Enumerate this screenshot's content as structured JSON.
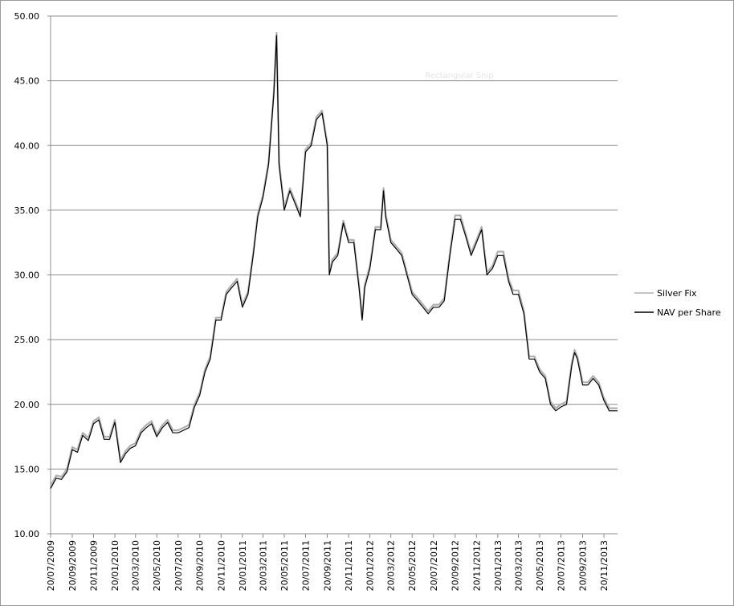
{
  "chart_data": {
    "type": "line",
    "annotation": "Rectangular Snip",
    "x": [
      "20/07/2009",
      "05/08/2009",
      "20/08/2009",
      "05/09/2009",
      "20/09/2009",
      "05/10/2009",
      "20/10/2009",
      "05/11/2009",
      "20/11/2009",
      "05/12/2009",
      "20/12/2009",
      "05/01/2010",
      "20/01/2010",
      "05/02/2010",
      "20/02/2010",
      "05/03/2010",
      "20/03/2010",
      "05/04/2010",
      "20/04/2010",
      "05/05/2010",
      "20/05/2010",
      "05/06/2010",
      "20/06/2010",
      "05/07/2010",
      "20/07/2010",
      "05/08/2010",
      "20/08/2010",
      "05/09/2010",
      "20/09/2010",
      "05/10/2010",
      "20/10/2010",
      "05/11/2010",
      "20/11/2010",
      "05/12/2010",
      "20/12/2010",
      "05/01/2011",
      "20/01/2011",
      "05/02/2011",
      "20/02/2011",
      "05/03/2011",
      "20/03/2011",
      "05/04/2011",
      "20/04/2011",
      "28/04/2011",
      "05/05/2011",
      "20/05/2011",
      "05/06/2011",
      "20/06/2011",
      "05/07/2011",
      "20/07/2011",
      "05/08/2011",
      "20/08/2011",
      "05/09/2011",
      "20/09/2011",
      "26/09/2011",
      "05/10/2011",
      "20/10/2011",
      "05/11/2011",
      "20/11/2011",
      "05/12/2011",
      "20/12/2011",
      "29/12/2011",
      "05/01/2012",
      "20/01/2012",
      "05/02/2012",
      "20/02/2012",
      "28/02/2012",
      "05/03/2012",
      "20/03/2012",
      "05/04/2012",
      "20/04/2012",
      "05/05/2012",
      "20/05/2012",
      "05/06/2012",
      "20/06/2012",
      "05/07/2012",
      "20/07/2012",
      "05/08/2012",
      "20/08/2012",
      "05/09/2012",
      "20/09/2012",
      "05/10/2012",
      "20/10/2012",
      "05/11/2012",
      "20/11/2012",
      "05/12/2012",
      "20/12/2012",
      "05/01/2013",
      "20/01/2013",
      "05/02/2013",
      "20/02/2013",
      "05/03/2013",
      "20/03/2013",
      "05/04/2013",
      "20/04/2013",
      "05/05/2013",
      "20/05/2013",
      "05/06/2013",
      "20/06/2013",
      "05/07/2013",
      "20/07/2013",
      "05/08/2013",
      "20/08/2013",
      "28/08/2013",
      "05/09/2013",
      "20/09/2013",
      "05/10/2013",
      "20/10/2013",
      "05/11/2013",
      "20/11/2013",
      "05/12/2013",
      "20/12/2013",
      "29/12/2013"
    ],
    "series": [
      {
        "name": "Silver Fix",
        "color": "#b0b0b0",
        "values": [
          13.7,
          14.5,
          14.4,
          15.0,
          16.7,
          16.5,
          17.8,
          17.4,
          18.7,
          19.0,
          17.5,
          17.5,
          18.8,
          15.7,
          16.4,
          16.8,
          17.0,
          18.0,
          18.4,
          18.7,
          17.7,
          18.4,
          18.8,
          18.0,
          18.0,
          18.2,
          18.4,
          20.0,
          20.9,
          22.7,
          23.7,
          26.7,
          26.7,
          28.7,
          29.2,
          29.7,
          27.7,
          28.7,
          31.7,
          34.7,
          36.2,
          38.7,
          44.2,
          48.7,
          38.7,
          35.2,
          36.7,
          35.7,
          34.7,
          39.7,
          40.2,
          42.2,
          42.7,
          40.2,
          30.2,
          31.2,
          31.7,
          34.2,
          32.7,
          32.7,
          29.2,
          26.7,
          29.2,
          30.7,
          33.7,
          33.7,
          36.7,
          34.7,
          32.7,
          32.2,
          31.7,
          30.2,
          28.7,
          28.2,
          27.7,
          27.2,
          27.7,
          27.7,
          28.2,
          31.7,
          34.6,
          34.6,
          33.2,
          31.7,
          32.7,
          33.7,
          30.2,
          30.7,
          31.8,
          31.8,
          29.7,
          28.8,
          28.8,
          27.2,
          23.7,
          23.7,
          22.7,
          22.2,
          20.2,
          19.7,
          20.0,
          20.2,
          23.2,
          24.2,
          23.7,
          21.7,
          21.7,
          22.2,
          21.7,
          20.5,
          19.7,
          19.7,
          19.7
        ]
      },
      {
        "name": "NAV per Share",
        "color": "#000000",
        "values": [
          13.5,
          14.3,
          14.2,
          14.8,
          16.5,
          16.3,
          17.6,
          17.2,
          18.5,
          18.8,
          17.3,
          17.3,
          18.6,
          15.5,
          16.2,
          16.6,
          16.8,
          17.8,
          18.2,
          18.5,
          17.5,
          18.2,
          18.6,
          17.8,
          17.8,
          18.0,
          18.2,
          19.8,
          20.7,
          22.5,
          23.5,
          26.5,
          26.5,
          28.5,
          29.0,
          29.5,
          27.5,
          28.5,
          31.5,
          34.5,
          36.0,
          38.5,
          44.0,
          48.5,
          38.5,
          35.0,
          36.5,
          35.5,
          34.5,
          39.5,
          40.0,
          42.0,
          42.5,
          40.0,
          30.0,
          31.0,
          31.5,
          34.0,
          32.5,
          32.5,
          29.0,
          26.5,
          29.0,
          30.5,
          33.5,
          33.5,
          36.5,
          34.5,
          32.5,
          32.0,
          31.5,
          30.0,
          28.5,
          28.0,
          27.5,
          27.0,
          27.5,
          27.5,
          28.0,
          31.5,
          34.3,
          34.3,
          33.0,
          31.5,
          32.5,
          33.5,
          30.0,
          30.5,
          31.5,
          31.5,
          29.5,
          28.5,
          28.5,
          27.0,
          23.5,
          23.5,
          22.5,
          22.0,
          20.0,
          19.5,
          19.8,
          20.0,
          23.0,
          24.0,
          23.5,
          21.5,
          21.5,
          22.0,
          21.5,
          20.3,
          19.5,
          19.5,
          19.5
        ]
      }
    ],
    "xlim": [
      "20/07/2009",
      "29/12/2013"
    ],
    "xticks": [
      "20/07/2009",
      "20/09/2009",
      "20/11/2009",
      "20/01/2010",
      "20/03/2010",
      "20/05/2010",
      "20/07/2010",
      "20/09/2010",
      "20/11/2010",
      "20/01/2011",
      "20/03/2011",
      "20/05/2011",
      "20/07/2011",
      "20/09/2011",
      "20/11/2011",
      "20/01/2012",
      "20/03/2012",
      "20/05/2012",
      "20/07/2012",
      "20/09/2012",
      "20/11/2012",
      "20/01/2013",
      "20/03/2013",
      "20/05/2013",
      "20/07/2013",
      "20/09/2013",
      "20/11/2013"
    ],
    "ylim": [
      10,
      50
    ],
    "yticks": [
      {
        "value": 10,
        "label": "10.00"
      },
      {
        "value": 15,
        "label": "15.00"
      },
      {
        "value": 20,
        "label": "20.00"
      },
      {
        "value": 25,
        "label": "25.00"
      },
      {
        "value": 30,
        "label": "30.00"
      },
      {
        "value": 35,
        "label": "35.00"
      },
      {
        "value": 40,
        "label": "40.00"
      },
      {
        "value": 45,
        "label": "45.00"
      },
      {
        "value": 50,
        "label": "50.00"
      }
    ],
    "grid": true,
    "legend": "right"
  }
}
